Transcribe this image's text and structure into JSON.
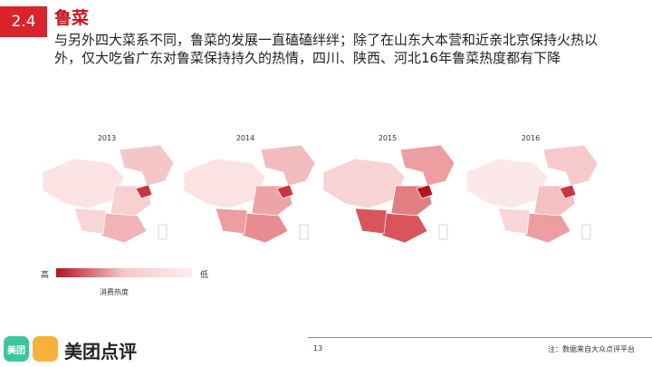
{
  "header": {
    "section_number": "2.4",
    "title": "鲁菜",
    "subtitle": "与另外四大菜系不同，鲁菜的发展一直磕磕绊绊；除了在山东大本营和近亲北京保持火热以外，仅大吃省广东对鲁菜保持持久的热情，四川、陕西、河北16年鲁菜热度都有下降"
  },
  "maps": [
    {
      "year": "2013"
    },
    {
      "year": "2014"
    },
    {
      "year": "2015"
    },
    {
      "year": "2016"
    }
  ],
  "legend": {
    "high_label": "高",
    "low_label": "低",
    "title": "消费热度",
    "colors": [
      "#b3141d",
      "#f6c8c9",
      "#fdeeee"
    ]
  },
  "footer": {
    "brand_left_icon": "美团",
    "brand_name": "美团点评",
    "page_number": "13",
    "note": "注：数据来自大众点评平台"
  },
  "colors": {
    "accent": "#d9242b",
    "map_light": "#fbe3e3",
    "map_medium": "#ee9da0",
    "map_dark": "#c8353c"
  }
}
